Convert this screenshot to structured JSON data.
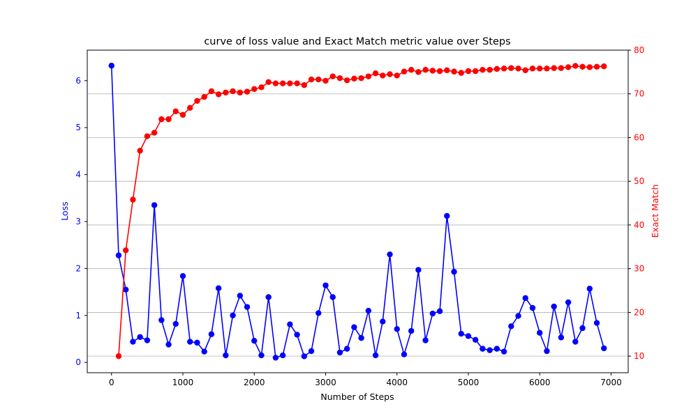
{
  "chart_data": {
    "type": "line",
    "title": "curve of loss value and Exact Match metric value over Steps",
    "xlabel": "Number of Steps",
    "ylabel_left": "Loss",
    "ylabel_right": "Exact Match",
    "xlim": [
      -340,
      7240
    ],
    "ylim_left": [
      -0.22,
      6.65
    ],
    "ylim_right": [
      6.2,
      80
    ],
    "x_ticks": [
      0,
      1000,
      2000,
      3000,
      4000,
      5000,
      6000,
      7000
    ],
    "x_tick_labels": [
      "0",
      "1000",
      "2000",
      "3000",
      "4000",
      "5000",
      "6000",
      "7000"
    ],
    "y_left_ticks": [
      0,
      1,
      2,
      3,
      4,
      5,
      6
    ],
    "y_left_tick_labels": [
      "0",
      "1",
      "2",
      "3",
      "4",
      "5",
      "6"
    ],
    "y_right_ticks": [
      10,
      20,
      30,
      40,
      50,
      60,
      70,
      80
    ],
    "y_right_tick_labels": [
      "10",
      "20",
      "30",
      "40",
      "50",
      "60",
      "70",
      "80"
    ],
    "grid": "horizontal, right axis",
    "colors": {
      "loss": "#0000ff",
      "exact_match": "#ff0000"
    },
    "series": [
      {
        "name": "Loss",
        "axis": "left",
        "color": "#0000ff",
        "x": [
          0,
          100,
          200,
          300,
          400,
          500,
          600,
          700,
          800,
          900,
          1000,
          1100,
          1200,
          1300,
          1400,
          1500,
          1600,
          1700,
          1800,
          1900,
          2000,
          2100,
          2200,
          2300,
          2400,
          2500,
          2600,
          2700,
          2800,
          2900,
          3000,
          3100,
          3200,
          3300,
          3400,
          3500,
          3600,
          3700,
          3800,
          3900,
          4000,
          4100,
          4200,
          4300,
          4400,
          4500,
          4600,
          4700,
          4800,
          4900,
          5000,
          5100,
          5200,
          5300,
          5400,
          5500,
          5600,
          5700,
          5800,
          5900,
          6000,
          6100,
          6200,
          6300,
          6400,
          6500,
          6600,
          6700,
          6800,
          6900
        ],
        "values": [
          6.32,
          2.28,
          1.55,
          0.44,
          0.54,
          0.47,
          3.35,
          0.9,
          0.38,
          0.82,
          1.84,
          0.44,
          0.42,
          0.23,
          0.6,
          1.58,
          0.15,
          1.0,
          1.42,
          1.18,
          0.46,
          0.15,
          1.39,
          0.1,
          0.15,
          0.81,
          0.59,
          0.13,
          0.24,
          1.05,
          1.64,
          1.39,
          0.21,
          0.29,
          0.75,
          0.52,
          1.1,
          0.15,
          0.87,
          2.3,
          0.71,
          0.17,
          0.67,
          1.97,
          0.47,
          1.04,
          1.09,
          3.12,
          1.93,
          0.61,
          0.56,
          0.48,
          0.29,
          0.26,
          0.29,
          0.23,
          0.77,
          0.99,
          1.37,
          1.16,
          0.63,
          0.24,
          1.19,
          0.53,
          1.28,
          0.44,
          0.73,
          1.57,
          0.84,
          0.3
        ]
      },
      {
        "name": "Exact Match",
        "axis": "right",
        "color": "#ff0000",
        "x": [
          100,
          200,
          300,
          400,
          500,
          600,
          700,
          800,
          900,
          1000,
          1100,
          1200,
          1300,
          1400,
          1500,
          1600,
          1700,
          1800,
          1900,
          2000,
          2100,
          2200,
          2300,
          2400,
          2500,
          2600,
          2700,
          2800,
          2900,
          3000,
          3100,
          3200,
          3300,
          3400,
          3500,
          3600,
          3700,
          3800,
          3900,
          4000,
          4100,
          4200,
          4300,
          4400,
          4500,
          4600,
          4700,
          4800,
          4900,
          5000,
          5100,
          5200,
          5300,
          5400,
          5500,
          5600,
          5700,
          5800,
          5900,
          6000,
          6100,
          6200,
          6300,
          6400,
          6500,
          6600,
          6700,
          6800,
          6900
        ],
        "values": [
          10.0,
          34.2,
          45.8,
          57.0,
          60.3,
          61.1,
          64.2,
          64.2,
          66.0,
          65.2,
          66.8,
          68.4,
          69.3,
          70.6,
          69.9,
          70.3,
          70.6,
          70.3,
          70.5,
          71.1,
          71.5,
          72.7,
          72.4,
          72.4,
          72.4,
          72.4,
          72.0,
          73.3,
          73.3,
          73.0,
          74.0,
          73.6,
          73.1,
          73.5,
          73.6,
          74.0,
          74.7,
          74.2,
          74.5,
          74.2,
          75.1,
          75.5,
          75.0,
          75.5,
          75.3,
          75.2,
          75.4,
          75.1,
          74.8,
          75.2,
          75.2,
          75.5,
          75.5,
          75.7,
          75.8,
          75.9,
          75.8,
          75.4,
          75.8,
          75.8,
          75.8,
          75.9,
          75.9,
          76.1,
          76.4,
          76.2,
          76.1,
          76.2,
          76.3
        ]
      }
    ]
  }
}
